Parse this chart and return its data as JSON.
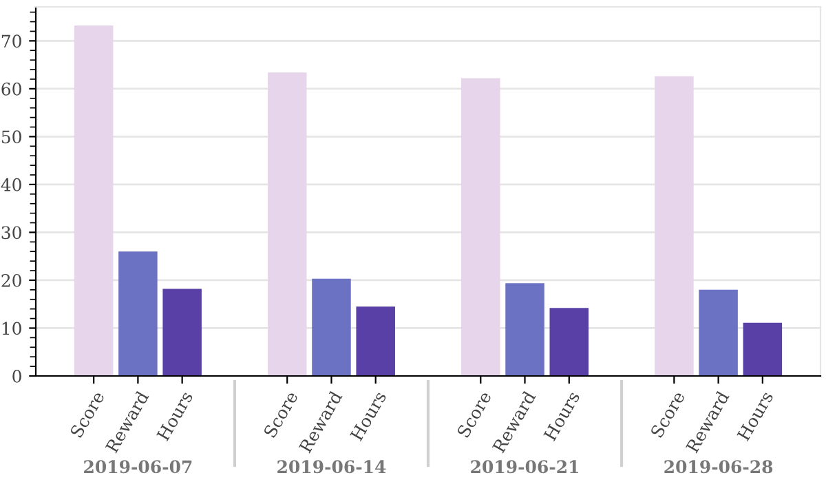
{
  "chart_data": {
    "type": "bar",
    "categories": [
      "2019-06-07",
      "2019-06-14",
      "2019-06-21",
      "2019-06-28"
    ],
    "series": [
      {
        "name": "Score",
        "color": "#e6d5eb",
        "values": [
          73.2,
          63.4,
          62.2,
          62.6
        ]
      },
      {
        "name": "Reward",
        "color": "#6c72c3",
        "values": [
          26.0,
          20.3,
          19.4,
          18.0
        ]
      },
      {
        "name": "Hours",
        "color": "#5940a6",
        "values": [
          18.2,
          14.5,
          14.2,
          11.1
        ]
      }
    ],
    "ylim": [
      0,
      77.1
    ],
    "yticks": [
      0,
      10,
      20,
      30,
      40,
      50,
      60,
      70
    ],
    "grid": "y",
    "legend": false
  }
}
